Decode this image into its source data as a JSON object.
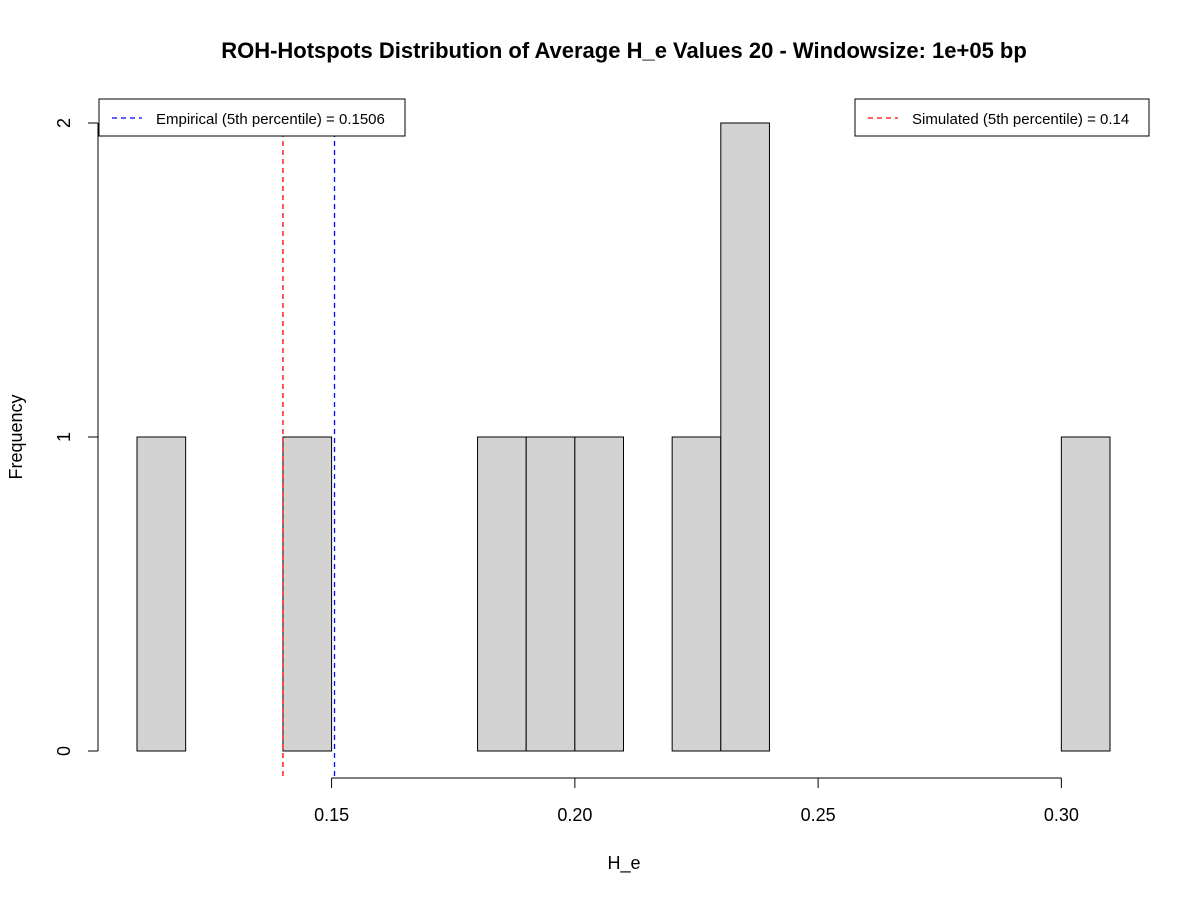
{
  "chart_data": {
    "type": "bar",
    "title": "ROH-Hotspots Distribution of Average H_e Values 20 - Windowsize: 1e+05 bp",
    "xlabel": "H_e",
    "ylabel": "Frequency",
    "xlim": [
      0.11,
      0.31
    ],
    "ylim": [
      0,
      2
    ],
    "bin_width": 0.01,
    "bins": [
      {
        "start": 0.11,
        "end": 0.12,
        "count": 1
      },
      {
        "start": 0.12,
        "end": 0.13,
        "count": 0
      },
      {
        "start": 0.13,
        "end": 0.14,
        "count": 0
      },
      {
        "start": 0.14,
        "end": 0.15,
        "count": 1
      },
      {
        "start": 0.15,
        "end": 0.16,
        "count": 0
      },
      {
        "start": 0.16,
        "end": 0.17,
        "count": 0
      },
      {
        "start": 0.17,
        "end": 0.18,
        "count": 0
      },
      {
        "start": 0.18,
        "end": 0.19,
        "count": 1
      },
      {
        "start": 0.19,
        "end": 0.2,
        "count": 1
      },
      {
        "start": 0.2,
        "end": 0.21,
        "count": 1
      },
      {
        "start": 0.21,
        "end": 0.22,
        "count": 0
      },
      {
        "start": 0.22,
        "end": 0.23,
        "count": 1
      },
      {
        "start": 0.23,
        "end": 0.24,
        "count": 2
      },
      {
        "start": 0.24,
        "end": 0.25,
        "count": 0
      },
      {
        "start": 0.25,
        "end": 0.26,
        "count": 0
      },
      {
        "start": 0.26,
        "end": 0.27,
        "count": 0
      },
      {
        "start": 0.27,
        "end": 0.28,
        "count": 0
      },
      {
        "start": 0.28,
        "end": 0.29,
        "count": 0
      },
      {
        "start": 0.29,
        "end": 0.3,
        "count": 0
      },
      {
        "start": 0.3,
        "end": 0.31,
        "count": 1
      }
    ],
    "x_ticks": [
      {
        "value": 0.15,
        "label": "0.15"
      },
      {
        "value": 0.2,
        "label": "0.20"
      },
      {
        "value": 0.25,
        "label": "0.25"
      },
      {
        "value": 0.3,
        "label": "0.30"
      }
    ],
    "y_ticks": [
      {
        "value": 0,
        "label": "0"
      },
      {
        "value": 1,
        "label": "1"
      },
      {
        "value": 2,
        "label": "2"
      }
    ],
    "reference_lines": [
      {
        "name": "empirical-line",
        "value": 0.1506,
        "color": "#0000ff",
        "style": "dashed"
      },
      {
        "name": "simulated-line",
        "value": 0.14,
        "color": "#ff0000",
        "style": "dashed"
      }
    ],
    "legends": {
      "empirical": {
        "label": "Empirical (5th percentile) = 0.1506",
        "color": "#0000ff",
        "position": "top-left"
      },
      "simulated": {
        "label": "Simulated (5th percentile) = 0.14",
        "color": "#ff0000",
        "position": "top-right"
      }
    },
    "bar_fill": "#d3d3d3",
    "bar_stroke": "#000000",
    "grid": false
  }
}
